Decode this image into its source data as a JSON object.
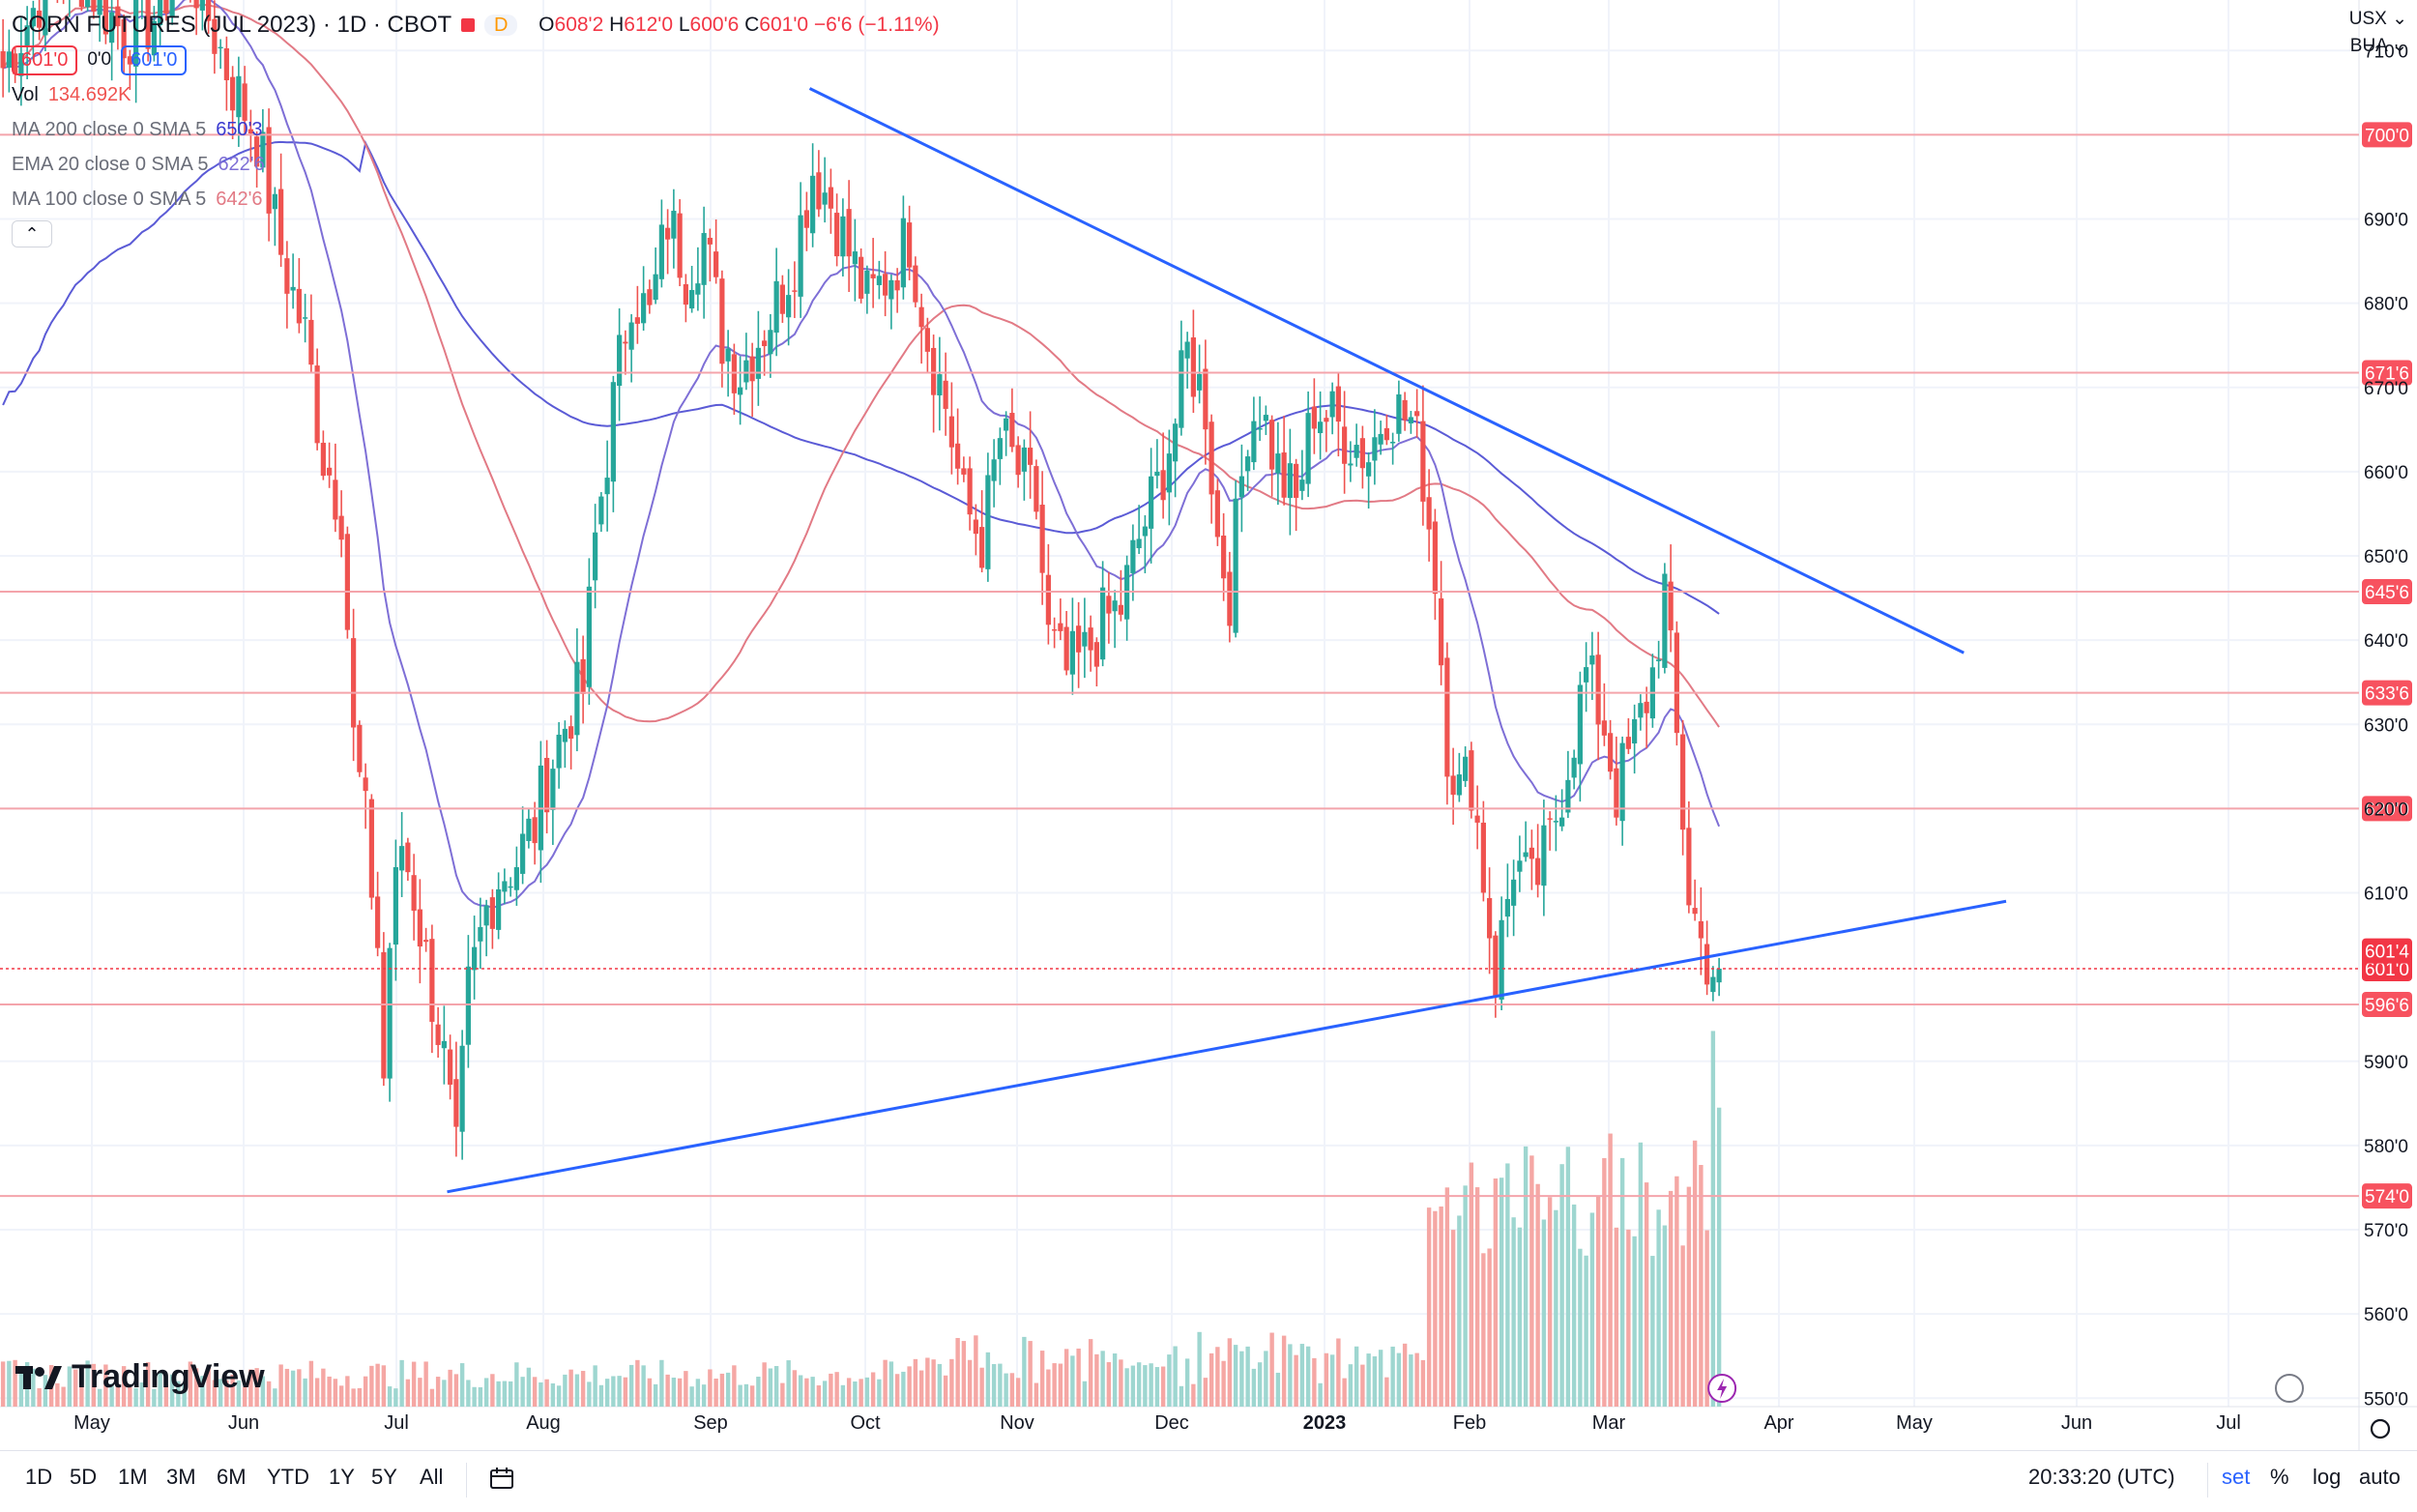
{
  "header": {
    "title": "CORN FUTURES (JUL 2023) · 1D · CBOT",
    "market_icon": "red-square-icon",
    "d_badge": "D",
    "ohlc": [
      {
        "k": "O",
        "v": "608'2"
      },
      {
        "k": "H",
        "v": "612'0"
      },
      {
        "k": "L",
        "v": "600'6"
      },
      {
        "k": "C",
        "v": "601'0"
      }
    ],
    "change": "−6'6 (−1.11%)",
    "sell_price": "601'0",
    "spread": "0'0",
    "buy_price": "601'0"
  },
  "indicators": {
    "vol_label": "Vol",
    "vol_value": "134.692K",
    "ma200_label": "MA 200 close 0 SMA 5",
    "ma200_value": "650'3",
    "ema20_label": "EMA 20 close 0 SMA 5",
    "ema20_value": "622'6",
    "ma100_label": "MA 100 close 0 SMA 5",
    "ma100_value": "642'6"
  },
  "currency": "USX",
  "unit": "BUA",
  "watermark": "TradingView",
  "colors": {
    "up": "#26a69a",
    "down": "#ef5350",
    "trend": "#2962ff",
    "ma200": "#5b5bd6",
    "ema20": "#7e6fd6",
    "ma100": "#e27a85",
    "level": "#f4a4ab"
  },
  "toolbar": {
    "ranges": [
      "1D",
      "5D",
      "1M",
      "3M",
      "6M",
      "YTD",
      "1Y",
      "5Y",
      "All"
    ],
    "time": "20:33:20 (UTC)",
    "session": "set",
    "percent": "%",
    "log": "log",
    "auto": "auto"
  },
  "chart_data": {
    "type": "candlestick",
    "x_axis_labels": [
      "May",
      "Jun",
      "Jul",
      "Aug",
      "Sep",
      "Oct",
      "Nov",
      "Dec",
      "2023",
      "Feb",
      "Mar",
      "Apr",
      "May",
      "Jun",
      "Jul"
    ],
    "y_ticks": [
      710,
      690,
      680,
      670,
      660,
      650,
      640,
      630,
      620,
      610,
      590,
      580,
      570,
      560,
      550
    ],
    "y_tick_labels": [
      "710'0",
      "690'0",
      "680'0",
      "670'0",
      "660'0",
      "650'0",
      "640'0",
      "630'0",
      "620'0",
      "610'0",
      "590'0",
      "580'0",
      "570'0",
      "560'0",
      "550'0"
    ],
    "ylim": [
      549,
      716
    ],
    "xlim": [
      0,
      360
    ],
    "levels": [
      {
        "value": 700,
        "label": "700'0"
      },
      {
        "value": 671.75,
        "label": "671'6"
      },
      {
        "value": 645.75,
        "label": "645'6"
      },
      {
        "value": 633.75,
        "label": "633'6"
      },
      {
        "value": 620,
        "label": "620'0"
      },
      {
        "value": 596.75,
        "label": "596'6"
      },
      {
        "value": 574,
        "label": "574'0"
      }
    ],
    "current_price": {
      "value": 601,
      "label": "601'0"
    },
    "bid_price": {
      "value": 601.5,
      "label": "601'4"
    },
    "trendlines": [
      {
        "name": "resistance",
        "from": [
          134,
          705.5
        ],
        "to": [
          325,
          638.5
        ]
      },
      {
        "name": "support",
        "from": [
          74,
          574.5
        ],
        "to": [
          332,
          609
        ]
      }
    ],
    "anchors": [
      [
        0,
        708
      ],
      [
        3,
        712
      ],
      [
        7,
        718
      ],
      [
        12,
        720
      ],
      [
        16,
        716
      ],
      [
        20,
        712
      ],
      [
        25,
        714
      ],
      [
        30,
        722
      ],
      [
        34,
        714
      ],
      [
        38,
        706
      ],
      [
        42,
        700
      ],
      [
        46,
        686
      ],
      [
        50,
        676
      ],
      [
        53,
        662
      ],
      [
        56,
        656
      ],
      [
        58,
        628
      ],
      [
        60,
        618
      ],
      [
        62,
        604
      ],
      [
        63,
        588
      ],
      [
        64,
        604
      ],
      [
        66,
        616
      ],
      [
        68,
        610
      ],
      [
        71,
        598
      ],
      [
        73,
        590
      ],
      [
        75,
        578
      ],
      [
        77,
        598
      ],
      [
        80,
        608
      ],
      [
        82,
        612
      ],
      [
        85,
        614
      ],
      [
        88,
        618
      ],
      [
        90,
        624
      ],
      [
        94,
        632
      ],
      [
        96,
        634
      ],
      [
        98,
        652
      ],
      [
        101,
        668
      ],
      [
        104,
        682
      ],
      [
        107,
        678
      ],
      [
        110,
        690
      ],
      [
        113,
        684
      ],
      [
        116,
        688
      ],
      [
        119,
        676
      ],
      [
        122,
        672
      ],
      [
        125,
        676
      ],
      [
        128,
        680
      ],
      [
        131,
        686
      ],
      [
        134,
        696
      ],
      [
        137,
        692
      ],
      [
        140,
        686
      ],
      [
        143,
        680
      ],
      [
        147,
        684
      ],
      [
        150,
        688
      ],
      [
        153,
        676
      ],
      [
        156,
        668
      ],
      [
        159,
        656
      ],
      [
        162,
        652
      ],
      [
        165,
        664
      ],
      [
        168,
        660
      ],
      [
        171,
        656
      ],
      [
        173,
        640
      ],
      [
        176,
        636
      ],
      [
        179,
        638
      ],
      [
        182,
        642
      ],
      [
        185,
        644
      ],
      [
        188,
        652
      ],
      [
        191,
        658
      ],
      [
        194,
        666
      ],
      [
        196,
        674
      ],
      [
        199,
        668
      ],
      [
        201,
        652
      ],
      [
        203,
        646
      ],
      [
        206,
        666
      ],
      [
        208,
        668
      ],
      [
        211,
        660
      ],
      [
        214,
        656
      ],
      [
        217,
        668
      ],
      [
        220,
        666
      ],
      [
        223,
        664
      ],
      [
        226,
        662
      ],
      [
        229,
        668
      ],
      [
        233,
        666
      ],
      [
        235,
        660
      ],
      [
        237,
        648
      ],
      [
        239,
        628
      ],
      [
        241,
        622
      ],
      [
        243,
        624
      ],
      [
        245,
        612
      ],
      [
        247,
        600
      ],
      [
        250,
        614
      ],
      [
        253,
        610
      ],
      [
        256,
        616
      ],
      [
        259,
        626
      ],
      [
        262,
        636
      ],
      [
        265,
        630
      ],
      [
        267,
        622
      ],
      [
        270,
        628
      ],
      [
        273,
        636
      ],
      [
        275,
        646
      ],
      [
        277,
        628
      ],
      [
        279,
        610
      ],
      [
        281,
        604
      ],
      [
        283,
        601
      ]
    ],
    "volume_ylim": [
      0,
      350000
    ],
    "volume_bars": 270,
    "volume_last": 134692
  }
}
